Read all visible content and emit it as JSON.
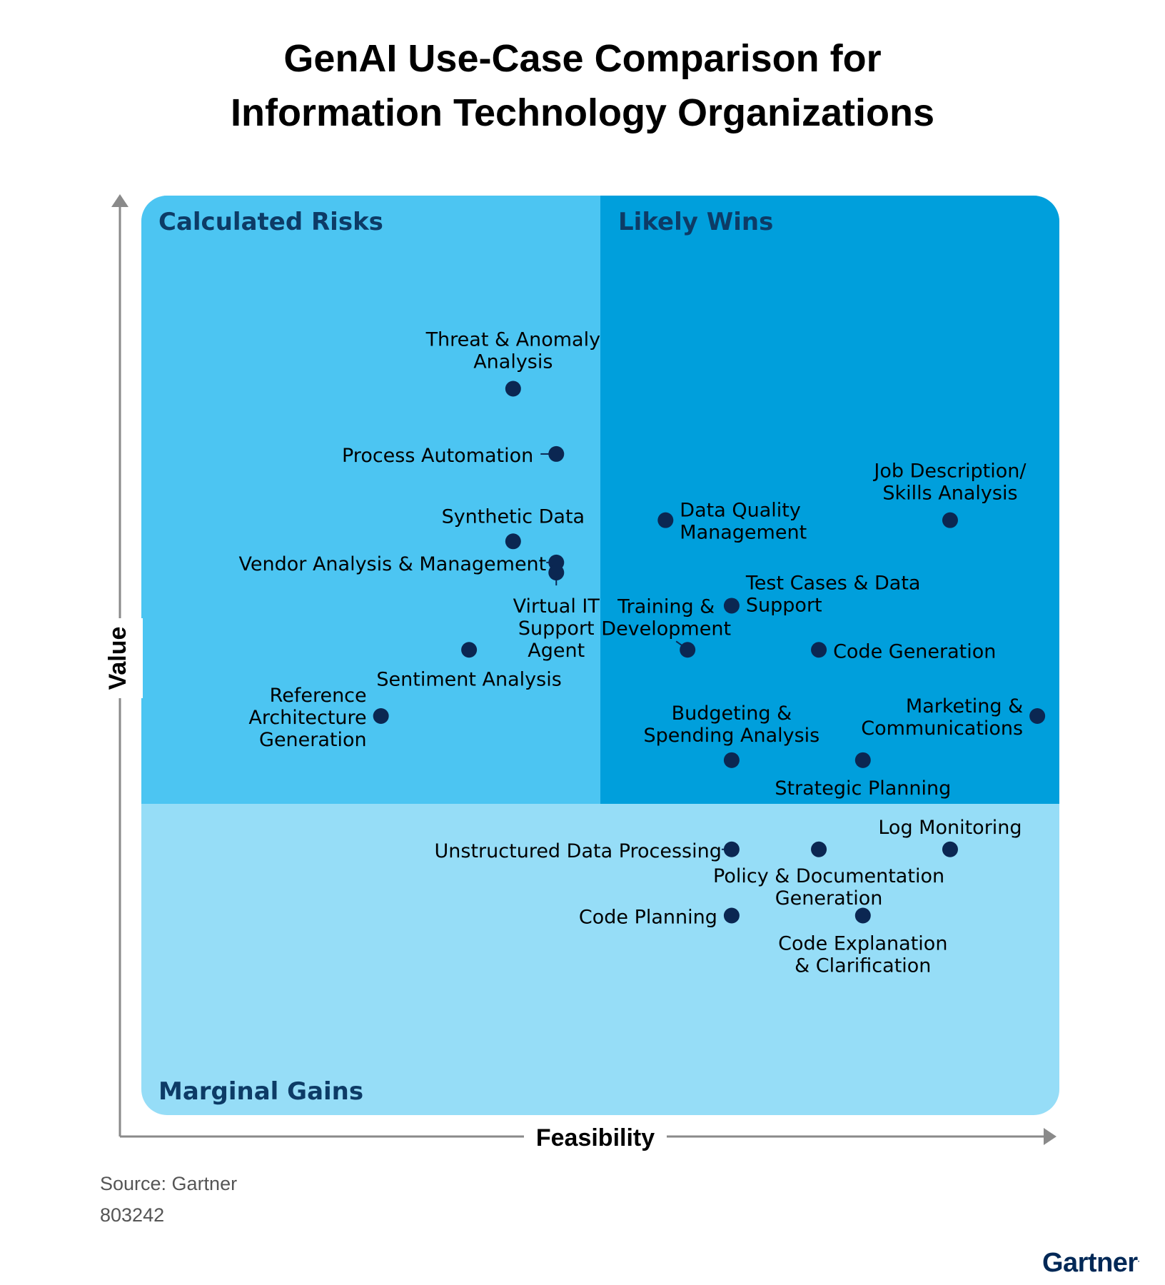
{
  "title_lines": [
    "GenAI Use-Case Comparison for",
    "Information Technology Organizations"
  ],
  "source": "Source: Gartner",
  "doc_id": "803242",
  "logo": "Gartner",
  "colors": {
    "calculated_risks": "#4cc5f2",
    "likely_wins": "#009fdc",
    "marginal_gains": "#96ddf7",
    "dot": "#0b2752",
    "quadrant_title": "#0d3b66",
    "axis": "#8a8a8a"
  },
  "chart_data": {
    "type": "scatter",
    "title": "GenAI Use-Case Comparison for Information Technology Organizations",
    "xlabel": "Feasibility",
    "ylabel": "Value",
    "xlim": [
      0,
      100
    ],
    "ylim": [
      0,
      100
    ],
    "quadrants": {
      "top_left": "Calculated Risks",
      "top_right": "Likely Wins",
      "bottom": "Marginal Gains"
    },
    "points": [
      {
        "label": "Threat & Anomaly Analysis",
        "x": 40.5,
        "y": 79.0
      },
      {
        "label": "Process Automation",
        "x": 45.2,
        "y": 71.9
      },
      {
        "label": "Synthetic Data",
        "x": 40.5,
        "y": 62.4
      },
      {
        "label": "Vendor Analysis & Management",
        "x": 45.2,
        "y": 60.1
      },
      {
        "label": "Virtual IT Support Agent",
        "x": 45.2,
        "y": 59.0
      },
      {
        "label": "Sentiment Analysis",
        "x": 35.7,
        "y": 50.6
      },
      {
        "label": "Reference Architecture Generation",
        "x": 26.1,
        "y": 43.4
      },
      {
        "label": "Data Quality Management",
        "x": 57.1,
        "y": 64.7
      },
      {
        "label": "Job Description/ Skills Analysis",
        "x": 88.1,
        "y": 64.7
      },
      {
        "label": "Training & Development",
        "x": 59.5,
        "y": 50.6
      },
      {
        "label": "Test Cases & Data Support",
        "x": 64.3,
        "y": 55.4
      },
      {
        "label": "Code Generation",
        "x": 73.8,
        "y": 50.6
      },
      {
        "label": "Budgeting & Spending Analysis",
        "x": 64.3,
        "y": 38.6
      },
      {
        "label": "Strategic Planning",
        "x": 78.6,
        "y": 38.6
      },
      {
        "label": "Marketing & Communications",
        "x": 97.6,
        "y": 43.4
      },
      {
        "label": "Unstructured Data Processing",
        "x": 64.3,
        "y": 28.9
      },
      {
        "label": "Policy & Documentation Generation",
        "x": 73.8,
        "y": 28.9
      },
      {
        "label": "Log Monitoring",
        "x": 88.1,
        "y": 28.9
      },
      {
        "label": "Code Planning",
        "x": 64.3,
        "y": 21.7
      },
      {
        "label": "Code Explanation & Clarification",
        "x": 78.6,
        "y": 21.7
      }
    ],
    "point_labels": [
      [
        "Threat & Anomaly",
        "Analysis"
      ],
      [
        "Process Automation"
      ],
      [
        "Synthetic Data"
      ],
      [
        "Vendor Analysis & Management"
      ],
      [
        "Virtual IT",
        "Support",
        "Agent"
      ],
      [
        "Sentiment Analysis"
      ],
      [
        "Reference",
        "Architecture",
        "Generation"
      ],
      [
        "Data Quality",
        "Management"
      ],
      [
        "Job Description/",
        "Skills Analysis"
      ],
      [
        "Training &",
        "Development"
      ],
      [
        "Test Cases & Data",
        "Support"
      ],
      [
        "Code Generation"
      ],
      [
        "Budgeting &",
        "Spending Analysis"
      ],
      [
        "Strategic Planning"
      ],
      [
        "Marketing &",
        "Communications"
      ],
      [
        "Unstructured Data Processing"
      ],
      [
        "Policy & Documentation",
        "Generation"
      ],
      [
        "Log Monitoring"
      ],
      [
        "Code Planning"
      ],
      [
        "Code Explanation",
        "& Clarification"
      ]
    ]
  }
}
